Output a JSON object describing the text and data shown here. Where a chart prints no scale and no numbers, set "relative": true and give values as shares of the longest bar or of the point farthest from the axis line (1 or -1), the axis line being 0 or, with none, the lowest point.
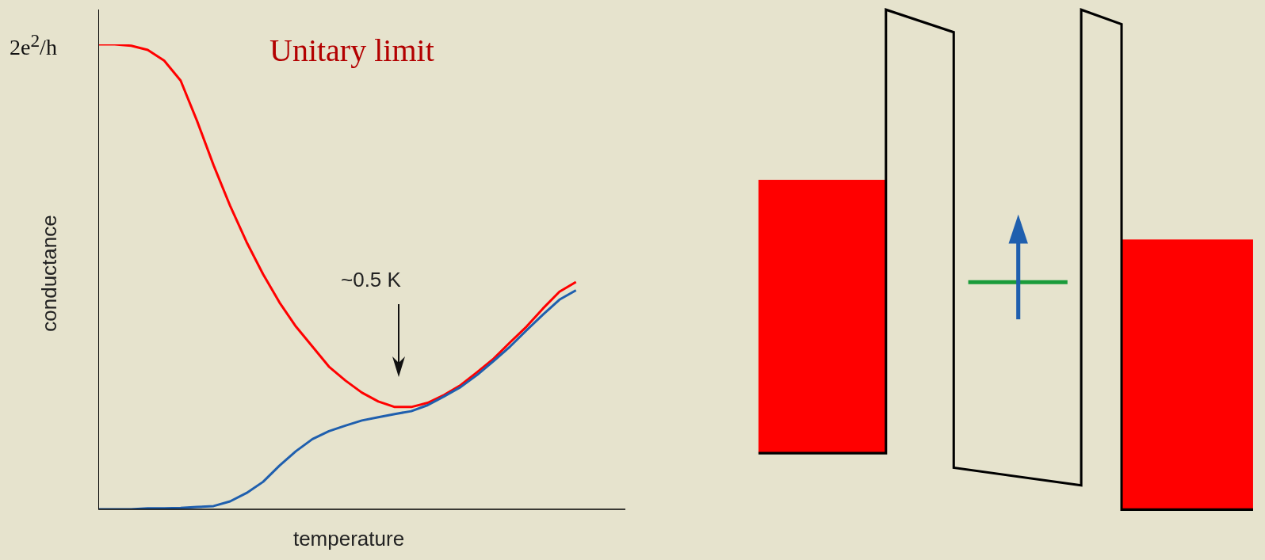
{
  "chart_data": {
    "type": "line",
    "relative": true,
    "xlabel": "temperature",
    "ylabel": "conductance",
    "annotations": [
      "2e$^{2}$/h",
      "~0.5 K"
    ],
    "categories": [
      null,
      null,
      null,
      null,
      null,
      null,
      null,
      null,
      null,
      null,
      null,
      null,
      null,
      null,
      null,
      null,
      null,
      null,
      null,
      null,
      null,
      null,
      null,
      null,
      null,
      null,
      null,
      null,
      null,
      null,
      null,
      null,
      null
    ],
    "series": [
      {
        "name": "Unitary limit",
        "color": "#ff0000",
        "values": [
          1,
          1,
          0.997,
          0.988,
          0.965,
          0.922,
          0.835,
          0.74,
          0.653,
          0.575,
          0.506,
          0.445,
          0.393,
          0.35,
          0.307,
          0.277,
          0.251,
          0.232,
          0.22,
          0.22,
          0.229,
          0.246,
          0.267,
          0.295,
          0.324,
          0.359,
          0.393,
          0.432,
          0.468,
          0.489,
          null,
          null,
          null
        ]
      },
      {
        "color": "#1f5fae",
        "values": [
          0,
          0,
          0,
          0.002,
          0.002,
          0.003,
          0.005,
          0.007,
          0.017,
          0.035,
          0.059,
          0.094,
          0.125,
          0.151,
          0.168,
          0.18,
          0.191,
          0.198,
          0.205,
          0.211,
          0.224,
          0.243,
          0.263,
          0.289,
          0.319,
          0.35,
          0.385,
          0.419,
          0.451,
          0.471,
          null,
          null,
          null
        ]
      }
    ],
    "marker": "none",
    "grid": false,
    "legend": false
  }
}
